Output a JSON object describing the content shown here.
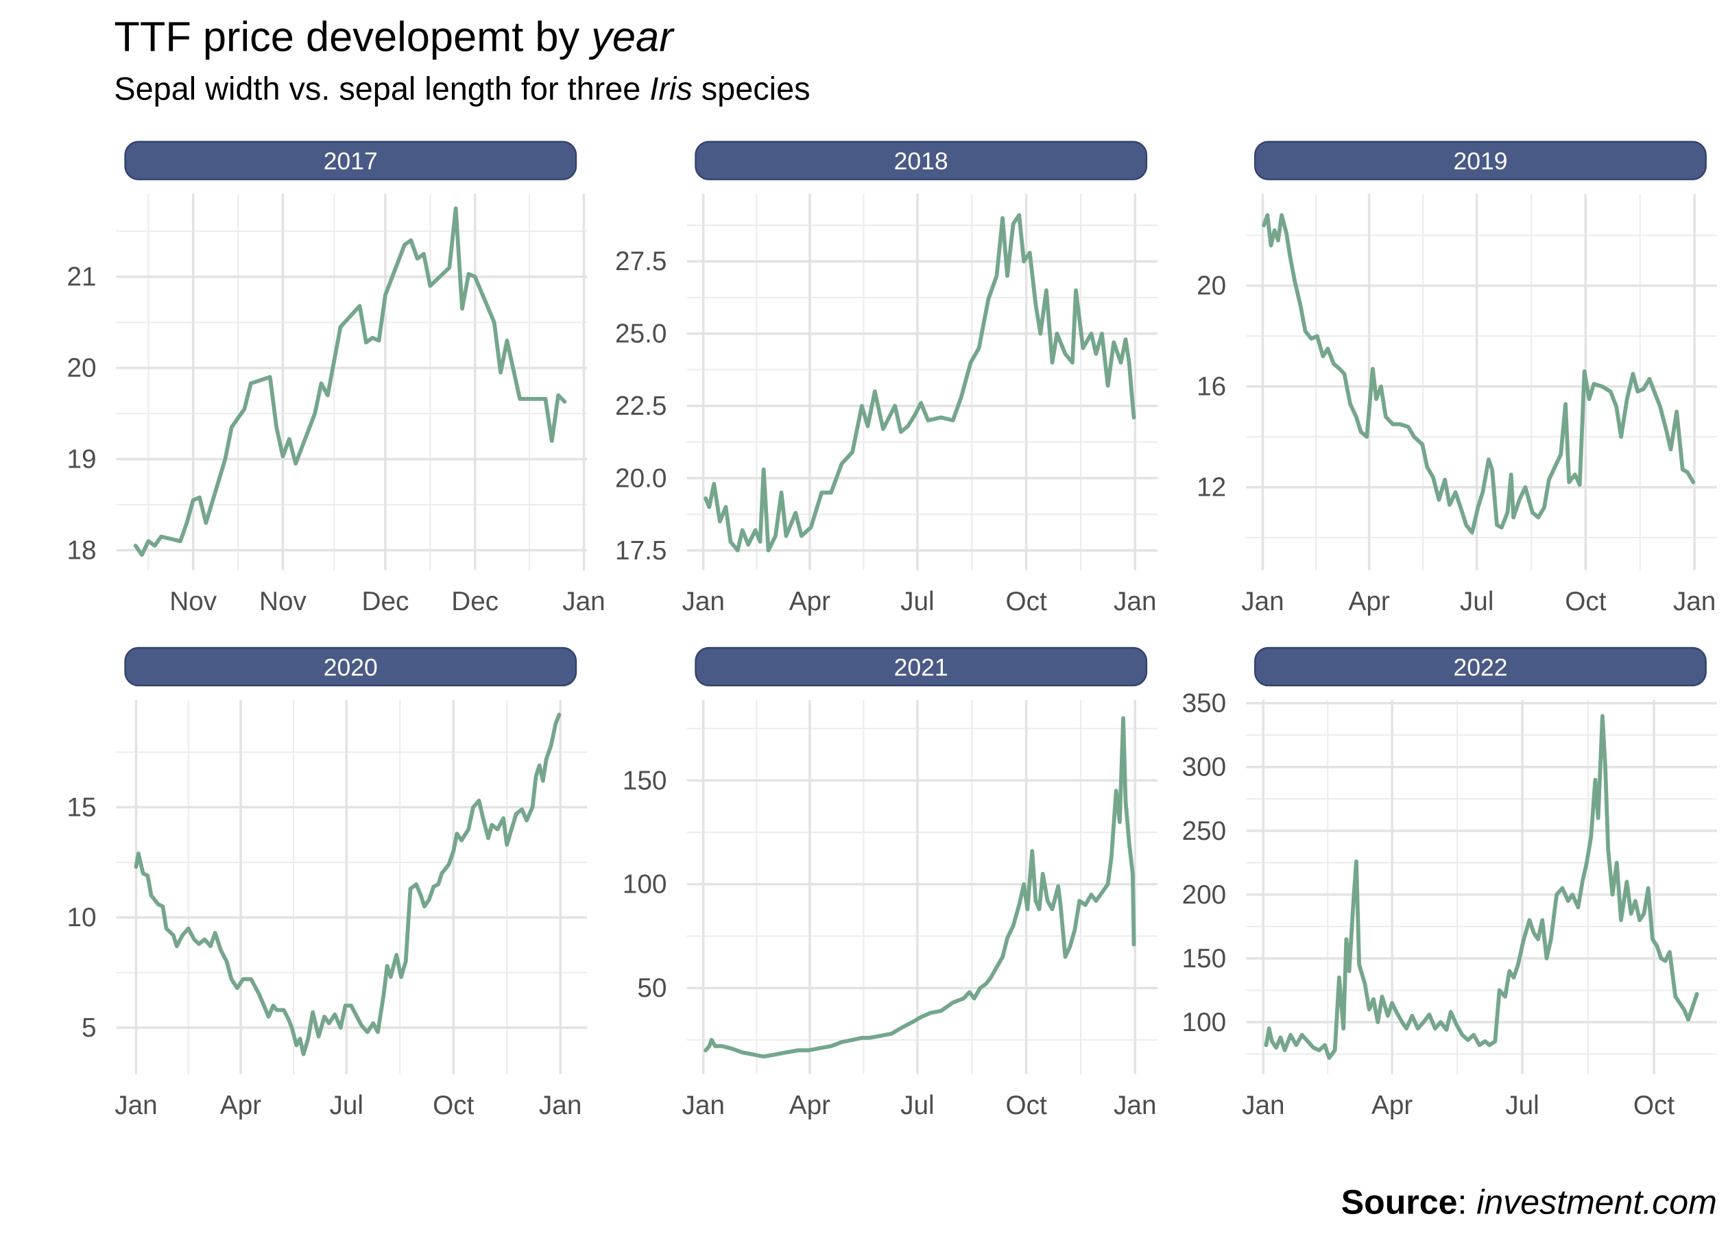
{
  "title": [
    "TTF price developemt by ",
    "year"
  ],
  "subtitle": [
    "Sepal width vs. sepal length for three ",
    "Iris",
    " species"
  ],
  "caption": [
    "Source",
    ": ",
    "investment.com"
  ],
  "chart_data": [
    {
      "type": "line",
      "title": "2017",
      "color": "#75a68c",
      "grid": true,
      "x": [
        296,
        297,
        298,
        299,
        300,
        303,
        304,
        305,
        306,
        307,
        310,
        311,
        312,
        313,
        314,
        317,
        318,
        319,
        320,
        321,
        324,
        325,
        326,
        328,
        331,
        332,
        333,
        334,
        335,
        338,
        339,
        340,
        341,
        342,
        345,
        346,
        347,
        348,
        349,
        352,
        353,
        354,
        356,
        360,
        361,
        362,
        363
      ],
      "values": [
        18.05,
        17.95,
        18.1,
        18.05,
        18.15,
        18.1,
        18.3,
        18.55,
        18.58,
        18.3,
        19.0,
        19.35,
        19.45,
        19.55,
        19.83,
        19.9,
        19.35,
        19.03,
        19.22,
        18.95,
        19.5,
        19.83,
        19.7,
        20.45,
        20.68,
        20.28,
        20.33,
        20.3,
        20.8,
        21.35,
        21.4,
        21.2,
        21.25,
        20.9,
        21.1,
        21.75,
        20.65,
        21.03,
        21.0,
        20.5,
        19.95,
        20.3,
        19.66,
        19.66,
        19.2,
        19.7,
        19.63
      ],
      "xlim": [
        293,
        366.5
      ],
      "ylim": [
        17.78,
        21.91
      ],
      "xticks": [
        {
          "value": 305,
          "label": "Nov"
        },
        {
          "value": 319,
          "label": "Nov"
        },
        {
          "value": 335,
          "label": "Dec"
        },
        {
          "value": 349,
          "label": "Dec"
        },
        {
          "value": 366,
          "label": "Jan"
        }
      ],
      "yticks": [
        18,
        19,
        20,
        21
      ]
    },
    {
      "type": "line",
      "title": "2018",
      "color": "#75a68c",
      "grid": true,
      "x": [
        3,
        6,
        10,
        15,
        20,
        24,
        30,
        34,
        39,
        45,
        49,
        52,
        56,
        62,
        67,
        71,
        79,
        84,
        92,
        101,
        109,
        118,
        127,
        135,
        140,
        146,
        153,
        163,
        168,
        174,
        180,
        185,
        191,
        202,
        212,
        219,
        227,
        234,
        242,
        249,
        254,
        258,
        263,
        268,
        272,
        277,
        282,
        286,
        291,
        296,
        300,
        307,
        313,
        316,
        322,
        329,
        333,
        338,
        343,
        348,
        354,
        358,
        361,
        363,
        365
      ],
      "values": [
        19.3,
        19.0,
        19.8,
        18.5,
        19.0,
        17.8,
        17.5,
        18.2,
        17.7,
        18.2,
        17.8,
        20.3,
        17.5,
        18.0,
        19.5,
        18.0,
        18.8,
        18.0,
        18.3,
        19.5,
        19.5,
        20.5,
        20.9,
        22.5,
        21.8,
        23.0,
        21.7,
        22.5,
        21.6,
        21.8,
        22.2,
        22.6,
        22.0,
        22.1,
        22.0,
        22.8,
        24.0,
        24.5,
        26.2,
        27.0,
        29.0,
        27.0,
        28.8,
        29.1,
        27.5,
        27.8,
        26.0,
        25.0,
        26.5,
        24.0,
        25.0,
        24.3,
        24.0,
        26.5,
        24.5,
        25.0,
        24.3,
        25.0,
        23.2,
        24.7,
        24.0,
        24.8,
        24.0,
        23.0,
        22.1
      ],
      "xlim": [
        -13,
        385
      ],
      "ylim": [
        16.81,
        29.84
      ],
      "xticks": [
        {
          "value": 1,
          "label": "Jan"
        },
        {
          "value": 91,
          "label": "Apr"
        },
        {
          "value": 182,
          "label": "Jul"
        },
        {
          "value": 274,
          "label": "Oct"
        },
        {
          "value": 366,
          "label": "Jan"
        }
      ],
      "yticks": [
        17.5,
        {
          "value": 20,
          "label": "20.0"
        },
        22.5,
        {
          "value": 25,
          "label": "25.0"
        },
        27.5
      ]
    },
    {
      "type": "line",
      "title": "2019",
      "color": "#75a68c",
      "grid": true,
      "x": [
        2,
        5,
        8,
        11,
        14,
        17,
        21,
        24,
        28,
        33,
        37,
        42,
        47,
        52,
        56,
        61,
        66,
        70,
        75,
        80,
        84,
        89,
        94,
        97,
        101,
        105,
        111,
        117,
        124,
        129,
        136,
        140,
        145,
        150,
        155,
        159,
        164,
        169,
        173,
        178,
        183,
        187,
        192,
        195,
        199,
        203,
        208,
        211,
        213,
        218,
        223,
        229,
        234,
        239,
        243,
        248,
        253,
        257,
        260,
        265,
        269,
        273,
        277,
        281,
        288,
        295,
        300,
        304,
        309,
        314,
        318,
        323,
        328,
        332,
        337,
        342,
        346,
        351,
        356,
        360,
        365
      ],
      "values": [
        22.4,
        22.8,
        21.6,
        22.2,
        21.8,
        22.8,
        22.1,
        21.2,
        20.2,
        19.2,
        18.2,
        17.9,
        18.0,
        17.2,
        17.5,
        16.9,
        16.7,
        16.5,
        15.3,
        14.8,
        14.2,
        14.0,
        16.7,
        15.5,
        16.0,
        14.8,
        14.5,
        14.5,
        14.4,
        14.0,
        13.7,
        12.8,
        12.4,
        11.5,
        12.3,
        11.3,
        11.8,
        11.1,
        10.5,
        10.2,
        11.2,
        11.8,
        13.1,
        12.7,
        10.5,
        10.4,
        11.0,
        12.5,
        10.8,
        11.5,
        12.0,
        11.0,
        10.8,
        11.2,
        12.3,
        12.8,
        13.3,
        15.3,
        12.2,
        12.5,
        12.1,
        16.6,
        15.5,
        16.1,
        16.0,
        15.8,
        15.2,
        14.0,
        15.5,
        16.5,
        15.8,
        15.9,
        16.3,
        15.8,
        15.2,
        14.3,
        13.5,
        15.0,
        12.7,
        12.6,
        12.2
      ],
      "xlim": [
        -13,
        385
      ],
      "ylim": [
        8.7,
        23.65
      ],
      "xticks": [
        {
          "value": 1,
          "label": "Jan"
        },
        {
          "value": 91,
          "label": "Apr"
        },
        {
          "value": 182,
          "label": "Jul"
        },
        {
          "value": 274,
          "label": "Oct"
        },
        {
          "value": 366,
          "label": "Jan"
        }
      ],
      "yticks": [
        12,
        16,
        20
      ]
    },
    {
      "type": "line",
      "title": "2020",
      "color": "#75a68c",
      "grid": true,
      "x": [
        1,
        3,
        7,
        11,
        14,
        20,
        24,
        27,
        33,
        36,
        41,
        46,
        51,
        55,
        60,
        65,
        69,
        74,
        79,
        83,
        88,
        93,
        100,
        104,
        107,
        111,
        115,
        119,
        122,
        128,
        132,
        135,
        139,
        142,
        145,
        149,
        153,
        158,
        163,
        167,
        172,
        177,
        181,
        186,
        191,
        195,
        200,
        205,
        209,
        214,
        217,
        220,
        225,
        229,
        233,
        237,
        242,
        246,
        249,
        253,
        257,
        261,
        264,
        270,
        274,
        277,
        281,
        287,
        291,
        296,
        300,
        304,
        307,
        312,
        317,
        320,
        324,
        328,
        333,
        337,
        342,
        345,
        348,
        351,
        354,
        358,
        362,
        365
      ],
      "values": [
        12.3,
        12.9,
        12.0,
        11.9,
        11.0,
        10.6,
        10.5,
        9.5,
        9.2,
        8.7,
        9.2,
        9.5,
        9.0,
        8.8,
        9.0,
        8.7,
        9.3,
        8.5,
        8.0,
        7.2,
        6.8,
        7.2,
        7.2,
        6.8,
        6.5,
        6.0,
        5.5,
        6.0,
        5.8,
        5.8,
        5.4,
        5.0,
        4.2,
        4.5,
        3.8,
        4.5,
        5.7,
        4.6,
        5.5,
        5.2,
        5.6,
        5.0,
        6.0,
        6.0,
        5.5,
        5.1,
        4.8,
        5.2,
        4.8,
        6.5,
        7.8,
        7.3,
        8.3,
        7.3,
        8.0,
        11.3,
        11.5,
        11.0,
        10.5,
        10.8,
        11.4,
        11.5,
        12.0,
        12.4,
        13.0,
        13.8,
        13.5,
        14.0,
        15.0,
        15.3,
        14.4,
        13.6,
        14.2,
        14.0,
        14.5,
        13.3,
        14.0,
        14.7,
        14.9,
        14.4,
        15.0,
        16.4,
        16.9,
        16.2,
        17.2,
        17.8,
        18.8,
        19.2
      ],
      "xlim": [
        -16,
        389
      ],
      "ylim": [
        2.89,
        19.87
      ],
      "xticks": [
        {
          "value": 1,
          "label": "Jan"
        },
        {
          "value": 91,
          "label": "Apr"
        },
        {
          "value": 182,
          "label": "Jul"
        },
        {
          "value": 274,
          "label": "Oct"
        },
        {
          "value": 366,
          "label": "Jan"
        }
      ],
      "yticks": [
        5,
        10,
        15
      ]
    },
    {
      "type": "line",
      "title": "2021",
      "color": "#75a68c",
      "grid": true,
      "x": [
        3,
        6,
        8,
        11,
        17,
        24,
        34,
        43,
        52,
        62,
        71,
        81,
        90,
        99,
        109,
        118,
        127,
        135,
        141,
        151,
        160,
        169,
        179,
        185,
        193,
        202,
        212,
        221,
        226,
        230,
        235,
        240,
        244,
        249,
        254,
        258,
        263,
        268,
        272,
        275,
        279,
        282,
        285,
        288,
        292,
        296,
        301,
        303,
        307,
        311,
        315,
        319,
        324,
        329,
        333,
        338,
        343,
        346,
        350,
        353,
        356,
        358,
        361,
        364,
        365
      ],
      "values": [
        20,
        22,
        25,
        22,
        22,
        21,
        19,
        18,
        17,
        18,
        19,
        20,
        20,
        21,
        22,
        24,
        25,
        26,
        26,
        27,
        28,
        31,
        34,
        36,
        38,
        39,
        43,
        45,
        48,
        45,
        50,
        52,
        55,
        60,
        65,
        74,
        80,
        90,
        100,
        88,
        116,
        92,
        88,
        105,
        92,
        88,
        99,
        90,
        65,
        70,
        78,
        92,
        90,
        95,
        92,
        96,
        100,
        113,
        145,
        130,
        180,
        140,
        120,
        105,
        71
      ],
      "xlim": [
        -13,
        385
      ],
      "ylim": [
        8.5,
        188.8
      ],
      "xticks": [
        {
          "value": 1,
          "label": "Jan"
        },
        {
          "value": 91,
          "label": "Apr"
        },
        {
          "value": 182,
          "label": "Jul"
        },
        {
          "value": 274,
          "label": "Oct"
        },
        {
          "value": 366,
          "label": "Jan"
        }
      ],
      "yticks": [
        50,
        100,
        150
      ]
    },
    {
      "type": "line",
      "title": "2022",
      "color": "#75a68c",
      "grid": true,
      "x": [
        3,
        5,
        7,
        10,
        13,
        16,
        20,
        24,
        28,
        32,
        36,
        40,
        44,
        47,
        51,
        54,
        57,
        59,
        61,
        64,
        66,
        68,
        72,
        75,
        78,
        81,
        84,
        88,
        91,
        94,
        98,
        101,
        105,
        109,
        113,
        117,
        121,
        125,
        129,
        132,
        136,
        140,
        144,
        148,
        152,
        156,
        159,
        163,
        166,
        170,
        173,
        176,
        179,
        183,
        187,
        190,
        193,
        196,
        199,
        202,
        206,
        210,
        214,
        217,
        221,
        224,
        227,
        230,
        233,
        235,
        238,
        240,
        242,
        245,
        248,
        251,
        255,
        258,
        261,
        264,
        267,
        270,
        273,
        276,
        279,
        282,
        285,
        289,
        292,
        295,
        298,
        301,
        304
      ],
      "values": [
        82,
        95,
        85,
        80,
        88,
        78,
        90,
        82,
        90,
        85,
        80,
        78,
        82,
        72,
        78,
        135,
        95,
        165,
        140,
        195,
        226,
        145,
        130,
        110,
        118,
        100,
        120,
        105,
        115,
        108,
        100,
        95,
        105,
        95,
        100,
        106,
        95,
        100,
        94,
        108,
        98,
        90,
        86,
        90,
        82,
        85,
        82,
        85,
        125,
        120,
        140,
        135,
        145,
        165,
        180,
        170,
        165,
        180,
        150,
        165,
        200,
        205,
        195,
        200,
        190,
        210,
        225,
        245,
        290,
        260,
        340,
        300,
        235,
        200,
        225,
        180,
        210,
        185,
        195,
        180,
        185,
        205,
        165,
        160,
        150,
        148,
        155,
        120,
        115,
        110,
        102,
        112,
        122
      ],
      "xlim": [
        -11,
        318
      ],
      "ylim": [
        59.2,
        352.6
      ],
      "xticks": [
        {
          "value": 1,
          "label": "Jan"
        },
        {
          "value": 91,
          "label": "Apr"
        },
        {
          "value": 182,
          "label": "Jul"
        },
        {
          "value": 274,
          "label": "Oct"
        }
      ],
      "yticks": [
        100,
        150,
        200,
        250,
        300,
        350
      ]
    }
  ]
}
